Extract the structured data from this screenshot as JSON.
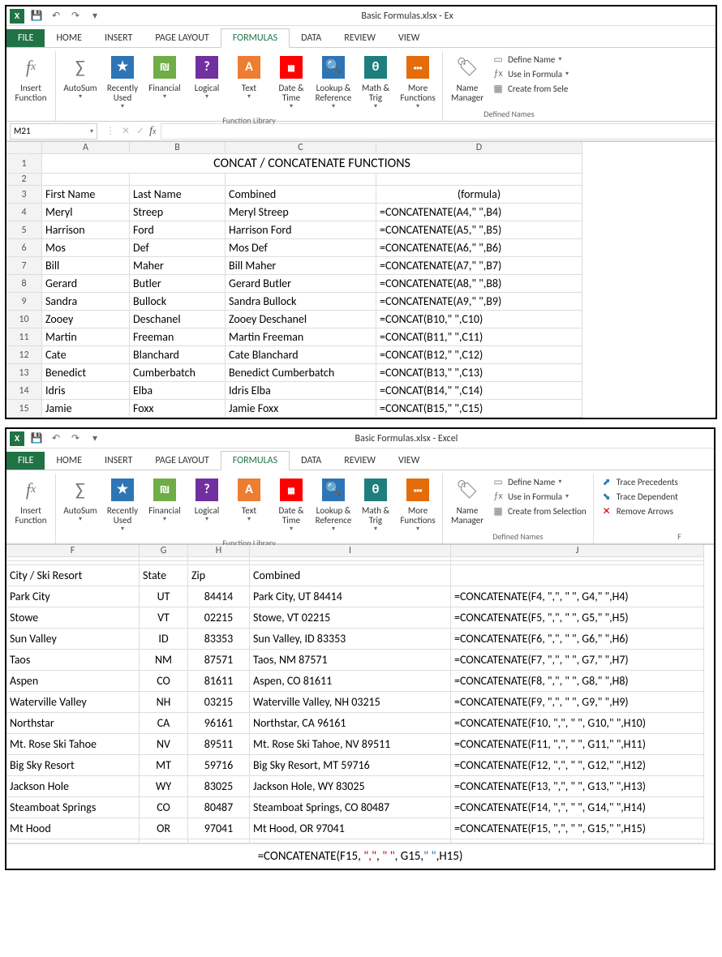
{
  "window1": {
    "title": "Basic Formulas.xlsx - Ex",
    "nameBox": "M21",
    "tabs": [
      "FILE",
      "HOME",
      "INSERT",
      "PAGE LAYOUT",
      "FORMULAS",
      "DATA",
      "REVIEW",
      "VIEW"
    ],
    "activeTab": "FORMULAS",
    "ribbon": {
      "insertFunction": "Insert Function",
      "autoSum": "AutoSum",
      "recentlyUsed": "Recently Used",
      "financial": "Financial",
      "logical": "Logical",
      "text": "Text",
      "dateTime": "Date & Time",
      "lookup": "Lookup & Reference",
      "mathTrig": "Math & Trig",
      "more": "More Functions",
      "groupLib": "Function Library",
      "nameManager": "Name Manager",
      "defineName": "Define Name",
      "useInFormula": "Use in Formula",
      "createFromSel": "Create from Sele",
      "groupNames": "Defined Names"
    },
    "sheet": {
      "colHeaders": [
        "A",
        "B",
        "C",
        "D"
      ],
      "colWidths": "44px 108px 118px 186px 254px",
      "rows": [
        {
          "n": "1",
          "merge": "CONCAT / CONCATENATE FUNCTIONS"
        },
        {
          "n": "2",
          "c": [
            "",
            "",
            "",
            ""
          ]
        },
        {
          "n": "3",
          "c": [
            "First Name",
            "Last Name",
            "Combined",
            "(formula)"
          ],
          "hdr": true
        },
        {
          "n": "4",
          "c": [
            "Meryl",
            "Streep",
            "Meryl Streep",
            "=CONCATENATE(A4,\" \",B4)"
          ]
        },
        {
          "n": "5",
          "c": [
            "Harrison",
            "Ford",
            "Harrison Ford",
            "=CONCATENATE(A5,\" \",B5)"
          ]
        },
        {
          "n": "6",
          "c": [
            "Mos",
            "Def",
            "Mos Def",
            "=CONCATENATE(A6,\" \",B6)"
          ]
        },
        {
          "n": "7",
          "c": [
            "Bill",
            "Maher",
            "Bill Maher",
            "=CONCATENATE(A7,\" \",B7)"
          ]
        },
        {
          "n": "8",
          "c": [
            "Gerard",
            "Butler",
            "Gerard Butler",
            "=CONCATENATE(A8,\" \",B8)"
          ]
        },
        {
          "n": "9",
          "c": [
            "Sandra",
            "Bullock",
            "Sandra Bullock",
            "=CONCATENATE(A9,\" \",B9)"
          ]
        },
        {
          "n": "10",
          "c": [
            "Zooey",
            "Deschanel",
            "Zooey Deschanel",
            "=CONCAT(B10,\" \",C10)"
          ]
        },
        {
          "n": "11",
          "c": [
            "Martin",
            "Freeman",
            "Martin Freeman",
            "=CONCAT(B11,\" \",C11)"
          ]
        },
        {
          "n": "12",
          "c": [
            "Cate",
            "Blanchard",
            "Cate Blanchard",
            "=CONCAT(B12,\" \",C12)"
          ]
        },
        {
          "n": "13",
          "c": [
            "Benedict",
            "Cumberbatch",
            "Benedict Cumberbatch",
            "=CONCAT(B13,\" \",C13)"
          ]
        },
        {
          "n": "14",
          "c": [
            "Idris",
            "Elba",
            "Idris Elba",
            "=CONCAT(B14,\" \",C14)"
          ]
        },
        {
          "n": "15",
          "c": [
            "Jamie",
            "Foxx",
            "Jamie Foxx",
            "=CONCAT(B15,\" \",C15)"
          ]
        }
      ],
      "centerFormulaHeader": true
    }
  },
  "window2": {
    "title": "Basic Formulas.xlsx - Excel",
    "tabs": [
      "FILE",
      "HOME",
      "INSERT",
      "PAGE LAYOUT",
      "FORMULAS",
      "DATA",
      "REVIEW",
      "VIEW"
    ],
    "activeTab": "FORMULAS",
    "ribbon": {
      "insertFunction": "Insert Function",
      "autoSum": "AutoSum",
      "recentlyUsed": "Recently Used",
      "financial": "Financial",
      "logical": "Logical",
      "text": "Text",
      "dateTime": "Date & Time",
      "lookup": "Lookup & Reference",
      "mathTrig": "Math & Trig",
      "more": "More Functions",
      "groupLib": "Function Library",
      "nameManager": "Name Manager",
      "defineName": "Define Name",
      "useInFormula": "Use in Formula",
      "createFromSel": "Create from Selection",
      "groupNames": "Defined Names",
      "tracePrec": "Trace Precedents",
      "traceDep": "Trace Dependent",
      "removeArrows": "Remove Arrows",
      "groupAudit": "F"
    },
    "sheet": {
      "colHeaders": [
        "F",
        "G",
        "H",
        "I",
        "J"
      ],
      "colWidths": "164px 60px 76px 248px 312px",
      "rows": [
        {
          "c": [
            "",
            "",
            "",
            "",
            ""
          ]
        },
        {
          "c": [
            "",
            "",
            "",
            "",
            ""
          ]
        },
        {
          "c": [
            "City / Ski Resort",
            "State",
            "Zip",
            "Combined",
            ""
          ],
          "hdr": true
        },
        {
          "c": [
            "Park City",
            "UT",
            "84414",
            "Park City, UT 84414",
            "=CONCATENATE(F4, \",\", \" \", G4,\" \",H4)"
          ]
        },
        {
          "c": [
            "Stowe",
            "VT",
            "02215",
            "Stowe, VT 02215",
            "=CONCATENATE(F5, \",\", \" \", G5,\" \",H5)"
          ]
        },
        {
          "c": [
            "Sun Valley",
            "ID",
            "83353",
            "Sun Valley, ID 83353",
            "=CONCATENATE(F6, \",\", \" \", G6,\" \",H6)"
          ]
        },
        {
          "c": [
            "Taos",
            "NM",
            "87571",
            "Taos, NM 87571",
            "=CONCATENATE(F7, \",\", \" \", G7,\" \",H7)"
          ]
        },
        {
          "c": [
            "Aspen",
            "CO",
            "81611",
            "Aspen, CO 81611",
            "=CONCATENATE(F8, \",\", \" \", G8,\" \",H8)"
          ]
        },
        {
          "c": [
            "Waterville Valley",
            "NH",
            "03215",
            "Waterville Valley, NH 03215",
            "=CONCATENATE(F9, \",\", \" \", G9,\" \",H9)"
          ]
        },
        {
          "c": [
            "Northstar",
            "CA",
            "96161",
            "Northstar, CA 96161",
            "=CONCATENATE(F10, \",\", \" \", G10,\" \",H10)"
          ]
        },
        {
          "c": [
            "Mt. Rose Ski Tahoe",
            "NV",
            "89511",
            "Mt. Rose Ski Tahoe, NV 89511",
            "=CONCATENATE(F11, \",\", \" \", G11,\" \",H11)"
          ]
        },
        {
          "c": [
            "Big Sky Resort",
            "MT",
            "59716",
            "Big Sky Resort, MT 59716",
            "=CONCATENATE(F12, \",\", \" \", G12,\" \",H12)"
          ]
        },
        {
          "c": [
            "Jackson Hole",
            "WY",
            "83025",
            "Jackson Hole, WY 83025",
            "=CONCATENATE(F13, \",\", \" \", G13,\" \",H13)"
          ]
        },
        {
          "c": [
            "Steamboat Springs",
            "CO",
            "80487",
            "Steamboat Springs, CO 80487",
            "=CONCATENATE(F14, \",\", \" \", G14,\" \",H14)"
          ]
        },
        {
          "c": [
            "Mt Hood",
            "OR",
            "97041",
            "Mt Hood, OR 97041",
            "=CONCATENATE(F15, \",\", \" \", G15,\" \",H15)"
          ]
        },
        {
          "c": [
            "",
            "",
            "",
            "",
            ""
          ]
        }
      ],
      "coloredFormula": {
        "prefix": "=CONCATENATE(F15, ",
        "red": "\",\"",
        "mid1": ", ",
        "q1": "\" \"",
        "mid2": ", G15,",
        "q2": "\" \"",
        "suffix": ",H15)"
      }
    }
  }
}
